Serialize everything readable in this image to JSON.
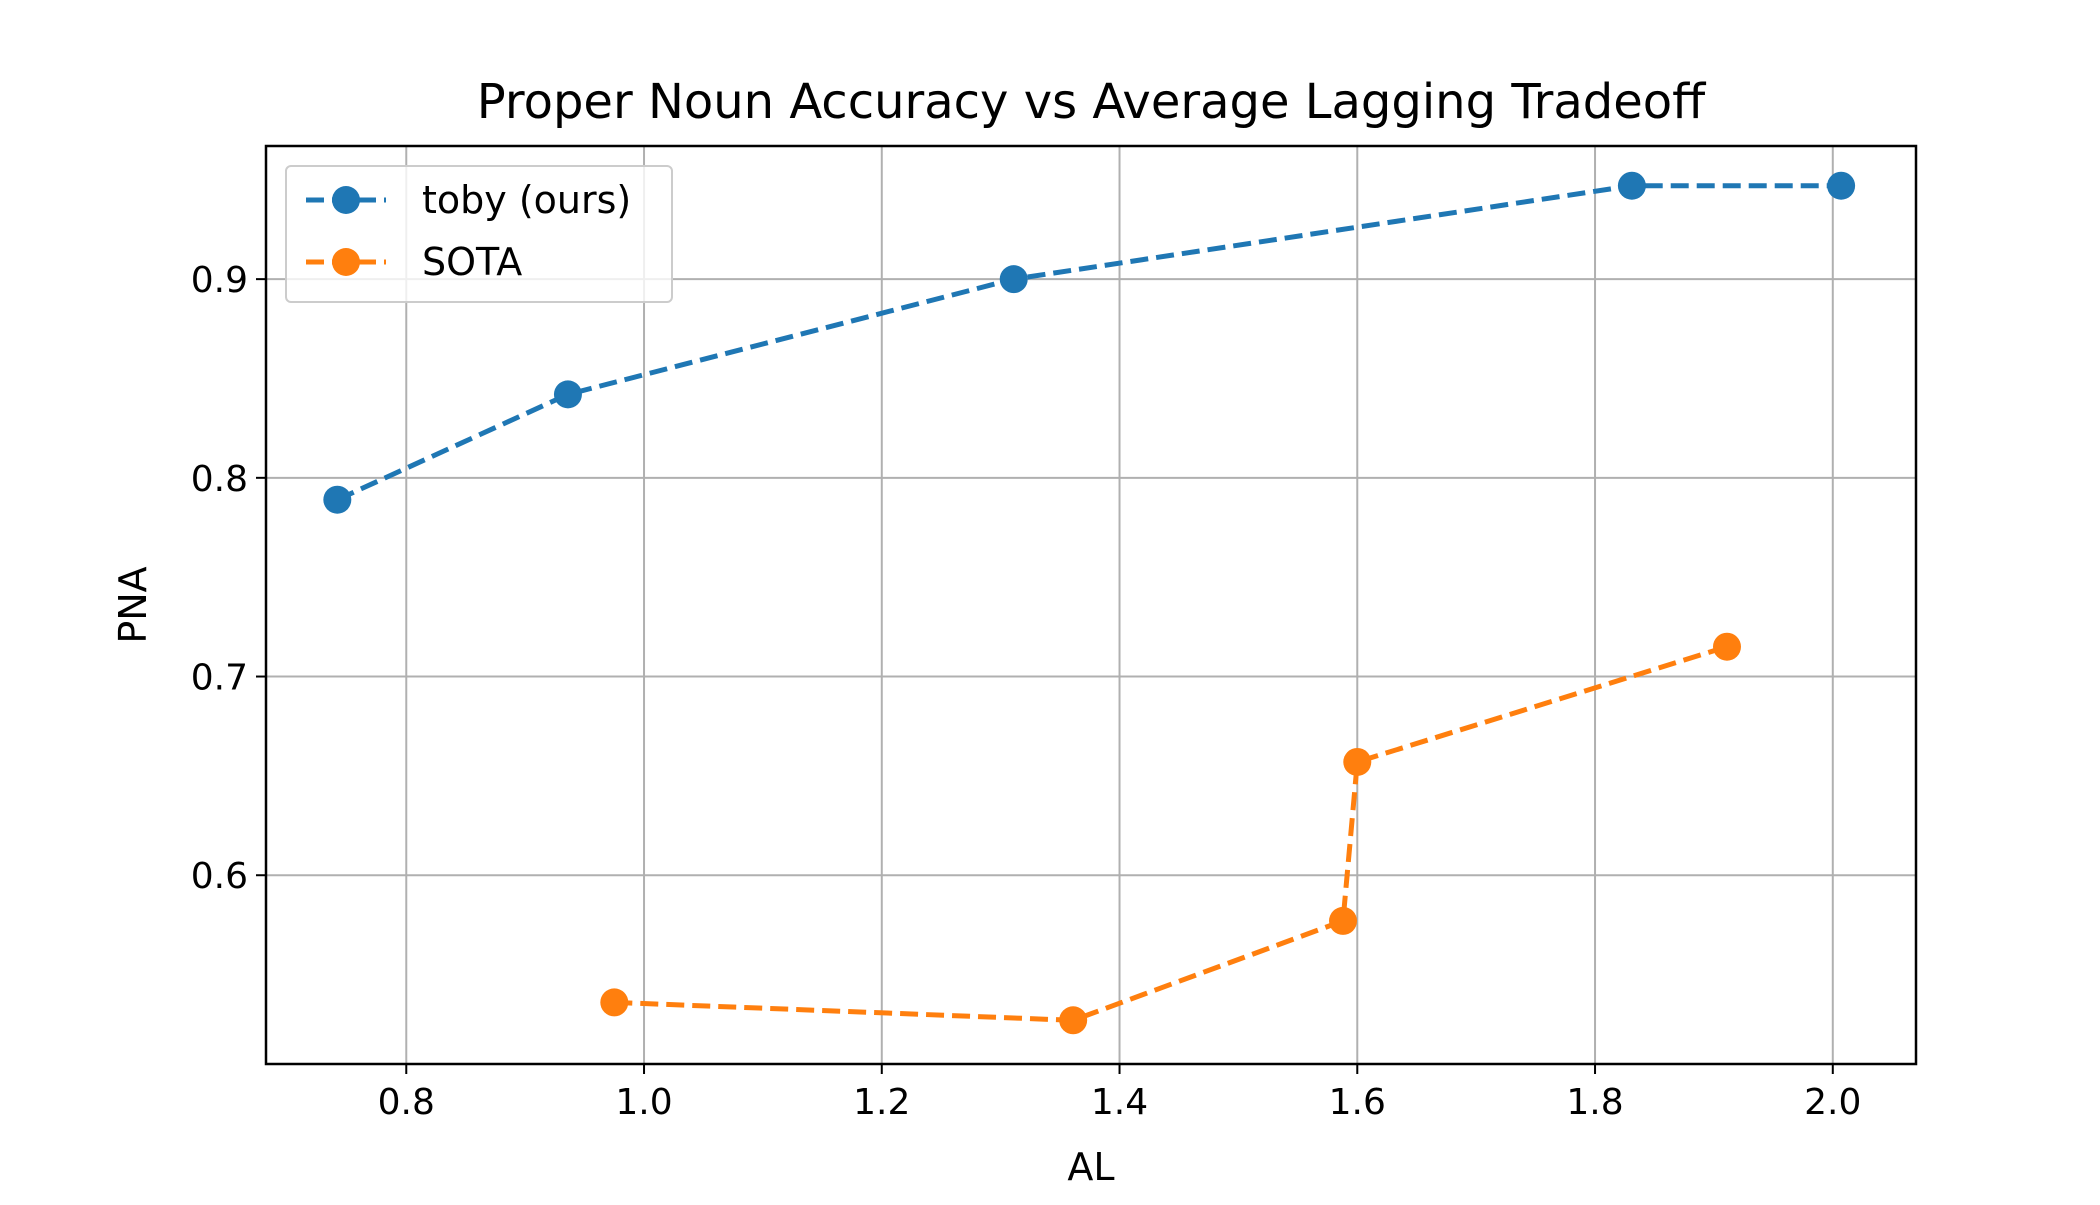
{
  "chart_data": {
    "type": "line",
    "title": "Proper Noun Accuracy vs Average Lagging Tradeoff",
    "xlabel": "AL",
    "ylabel": "PNA",
    "xlim": [
      0.682,
      2.07
    ],
    "ylim": [
      0.505,
      0.967
    ],
    "xticks": [
      0.8,
      1.0,
      1.2,
      1.4,
      1.6,
      1.8,
      2.0
    ],
    "yticks": [
      0.6,
      0.7,
      0.8,
      0.9
    ],
    "xtick_labels": [
      "0.8",
      "1.0",
      "1.2",
      "1.4",
      "1.6",
      "1.8",
      "2.0"
    ],
    "ytick_labels": [
      "0.6",
      "0.7",
      "0.8",
      "0.9"
    ],
    "grid": true,
    "legend_position": "top-left",
    "series": [
      {
        "name": "toby (ours)",
        "color": "#1f77b4",
        "line_style": "dashed",
        "marker": "circle",
        "x": [
          0.742,
          0.936,
          1.311,
          1.831,
          2.007
        ],
        "y": [
          0.789,
          0.842,
          0.9,
          0.947,
          0.947
        ]
      },
      {
        "name": "SOTA",
        "color": "#ff7f0e",
        "line_style": "dashed",
        "marker": "circle",
        "x": [
          0.975,
          1.361,
          1.588,
          1.6,
          1.911
        ],
        "y": [
          0.536,
          0.527,
          0.577,
          0.657,
          0.715
        ]
      }
    ]
  }
}
